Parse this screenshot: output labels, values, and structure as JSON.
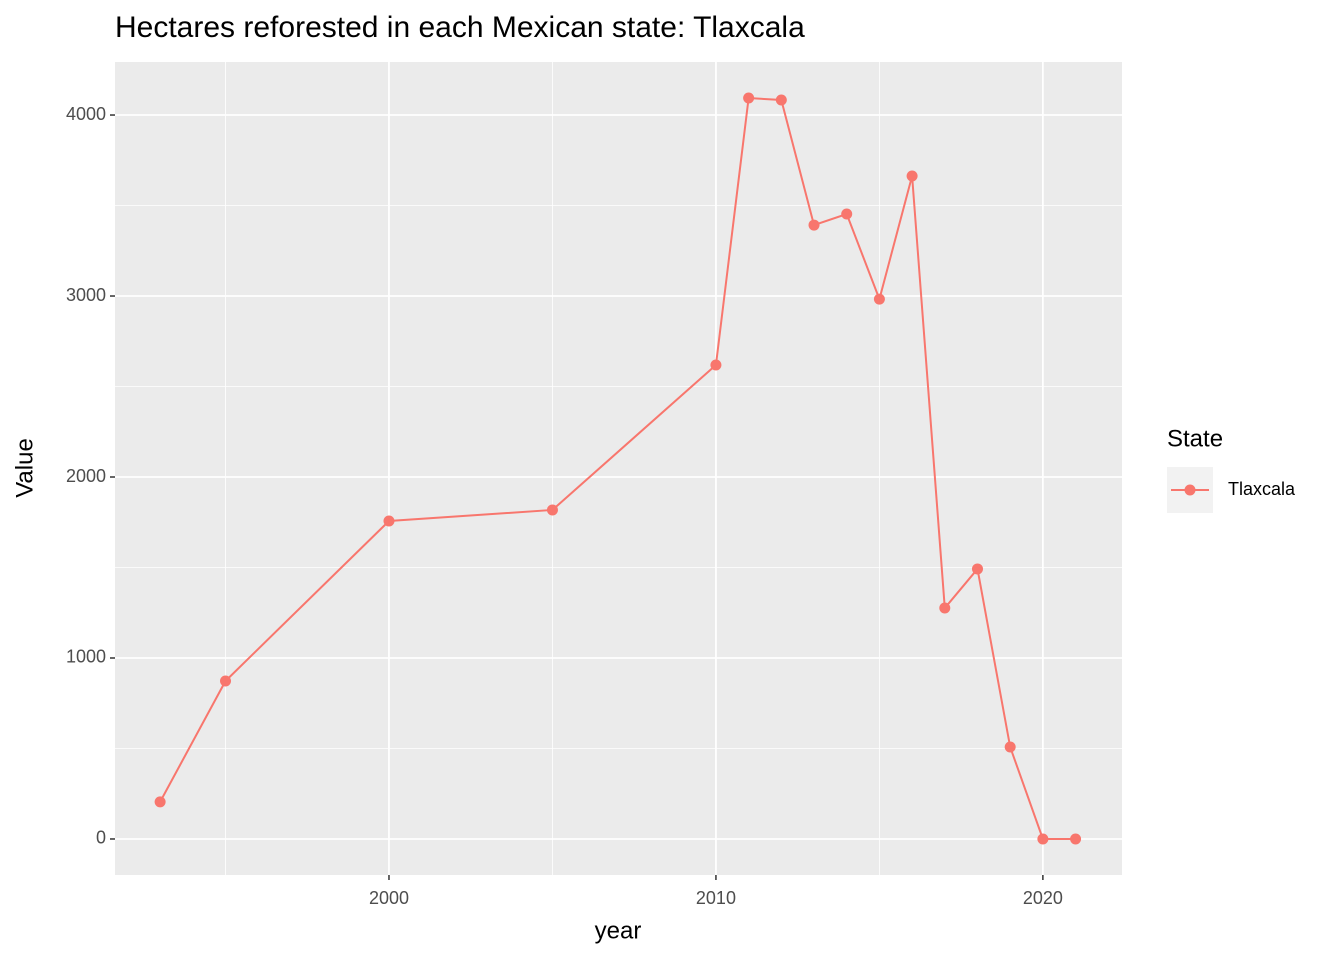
{
  "chart_data": {
    "type": "line",
    "title": "Hectares reforested in each Mexican state: Tlaxcala",
    "x_label": "year",
    "y_label": "Value",
    "legend_title": "State",
    "legend_position": "right",
    "x": [
      1993,
      1995,
      2000,
      2005,
      2010,
      2011,
      2012,
      2013,
      2014,
      2015,
      2016,
      2017,
      2018,
      2019,
      2020,
      2021
    ],
    "series": [
      {
        "name": "Tlaxcala",
        "color": "#F8766D",
        "values": [
          205,
          873,
          1757,
          1818,
          2619,
          4094,
          4083,
          3392,
          3453,
          2983,
          3663,
          1276,
          1492,
          508,
          0,
          0
        ]
      }
    ],
    "xlim": [
      1991.62,
      2022.42
    ],
    "ylim": [
      -199,
      4293
    ],
    "xticks": [
      2000,
      2010,
      2020
    ],
    "yticks": [
      0,
      1000,
      2000,
      3000,
      4000
    ],
    "minor_xticks": [
      1995,
      2005,
      2015
    ],
    "minor_yticks": [
      500,
      1500,
      2500,
      3500
    ],
    "grid": true
  }
}
